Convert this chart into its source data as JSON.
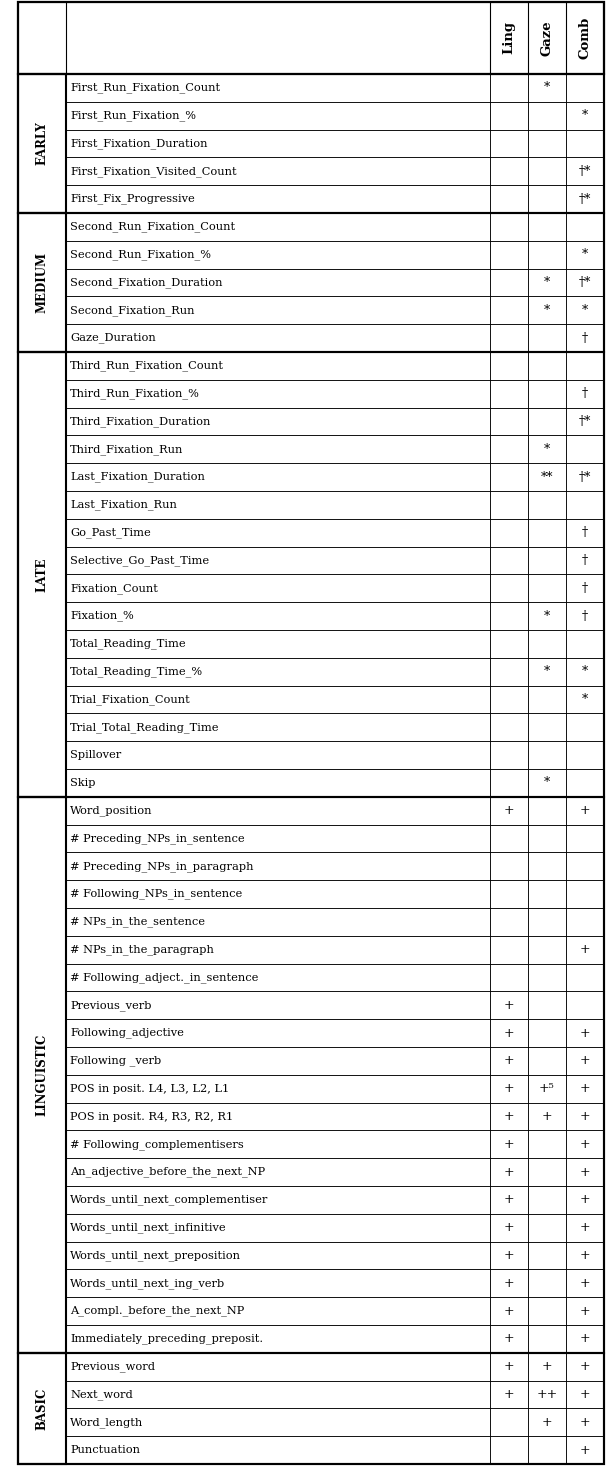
{
  "header_labels": [
    "",
    "",
    "Ling",
    "Gaze",
    "Comb"
  ],
  "sections": [
    {
      "label": "EARLY",
      "rows": [
        [
          "First_Run_Fixation_Count",
          "",
          "*",
          ""
        ],
        [
          "First_Run_Fixation_%",
          "",
          "",
          "*"
        ],
        [
          "First_Fixation_Duration",
          "",
          "",
          ""
        ],
        [
          "First_Fixation_Visited_Count",
          "",
          "",
          "†*"
        ],
        [
          "First_Fix_Progressive",
          "",
          "",
          "†*"
        ]
      ]
    },
    {
      "label": "MEDIUM",
      "rows": [
        [
          "Second_Run_Fixation_Count",
          "",
          "",
          ""
        ],
        [
          "Second_Run_Fixation_%",
          "",
          "",
          "*"
        ],
        [
          "Second_Fixation_Duration",
          "",
          "*",
          "†*"
        ],
        [
          "Second_Fixation_Run",
          "",
          "*",
          "*"
        ],
        [
          "Gaze_Duration",
          "",
          "",
          "†"
        ]
      ]
    },
    {
      "label": "LATE",
      "rows": [
        [
          "Third_Run_Fixation_Count",
          "",
          "",
          ""
        ],
        [
          "Third_Run_Fixation_%",
          "",
          "",
          "†"
        ],
        [
          "Third_Fixation_Duration",
          "",
          "",
          "†*"
        ],
        [
          "Third_Fixation_Run",
          "",
          "*",
          ""
        ],
        [
          "Last_Fixation_Duration",
          "",
          "**",
          "†*"
        ],
        [
          "Last_Fixation_Run",
          "",
          "",
          ""
        ],
        [
          "Go_Past_Time",
          "",
          "",
          "†"
        ],
        [
          "Selective_Go_Past_Time",
          "",
          "",
          "†"
        ],
        [
          "Fixation_Count",
          "",
          "",
          "†"
        ],
        [
          "Fixation_%",
          "",
          "*",
          "†"
        ],
        [
          "Total_Reading_Time",
          "",
          "",
          ""
        ],
        [
          "Total_Reading_Time_%",
          "",
          "*",
          "*"
        ],
        [
          "Trial_Fixation_Count",
          "",
          "",
          "*"
        ],
        [
          "Trial_Total_Reading_Time",
          "",
          "",
          ""
        ],
        [
          "Spillover",
          "",
          "",
          ""
        ],
        [
          "Skip",
          "",
          "*",
          ""
        ]
      ]
    },
    {
      "label": "LINGUISTIC",
      "rows": [
        [
          "Word_position",
          "+",
          "",
          "+"
        ],
        [
          "# Preceding_NPs_in_sentence",
          "",
          "",
          ""
        ],
        [
          "# Preceding_NPs_in_paragraph",
          "",
          "",
          ""
        ],
        [
          "# Following_NPs_in_sentence",
          "",
          "",
          ""
        ],
        [
          "# NPs_in_the_sentence",
          "",
          "",
          ""
        ],
        [
          "# NPs_in_the_paragraph",
          "",
          "",
          "+"
        ],
        [
          "# Following_adject._in_sentence",
          "",
          "",
          ""
        ],
        [
          "Previous_verb",
          "+",
          "",
          ""
        ],
        [
          "Following_adjective",
          "+",
          "",
          "+"
        ],
        [
          "Following _verb",
          "+",
          "",
          "+"
        ],
        [
          "POS in posit. L4, L3, L2, L1",
          "+",
          "+⁵",
          "+"
        ],
        [
          "POS in posit. R4, R3, R2, R1",
          "+",
          "+",
          "+"
        ],
        [
          "# Following_complementisers",
          "+",
          "",
          "+"
        ],
        [
          "An_adjective_before_the_next_NP",
          "+",
          "",
          "+"
        ],
        [
          "Words_until_next_complementiser",
          "+",
          "",
          "+"
        ],
        [
          "Words_until_next_infinitive",
          "+",
          "",
          "+"
        ],
        [
          "Words_until_next_preposition",
          "+",
          "",
          "+"
        ],
        [
          "Words_until_next_ing_verb",
          "+",
          "",
          "+"
        ],
        [
          "A_compl._before_the_next_NP",
          "+",
          "",
          "+"
        ],
        [
          "Immediately_preceding_preposit.",
          "+",
          "",
          "+"
        ]
      ]
    },
    {
      "label": "BASIC",
      "rows": [
        [
          "Previous_word",
          "+",
          "+",
          "+"
        ],
        [
          "Next_word",
          "+",
          "++",
          "+"
        ],
        [
          "Word_length",
          "",
          "+",
          "+"
        ],
        [
          "Punctuation",
          "",
          "",
          "+"
        ]
      ]
    }
  ],
  "bg_color": "#ffffff",
  "border_color": "#000000",
  "text_color": "#000000",
  "fig_width": 6.06,
  "fig_height": 14.66,
  "dpi": 100
}
